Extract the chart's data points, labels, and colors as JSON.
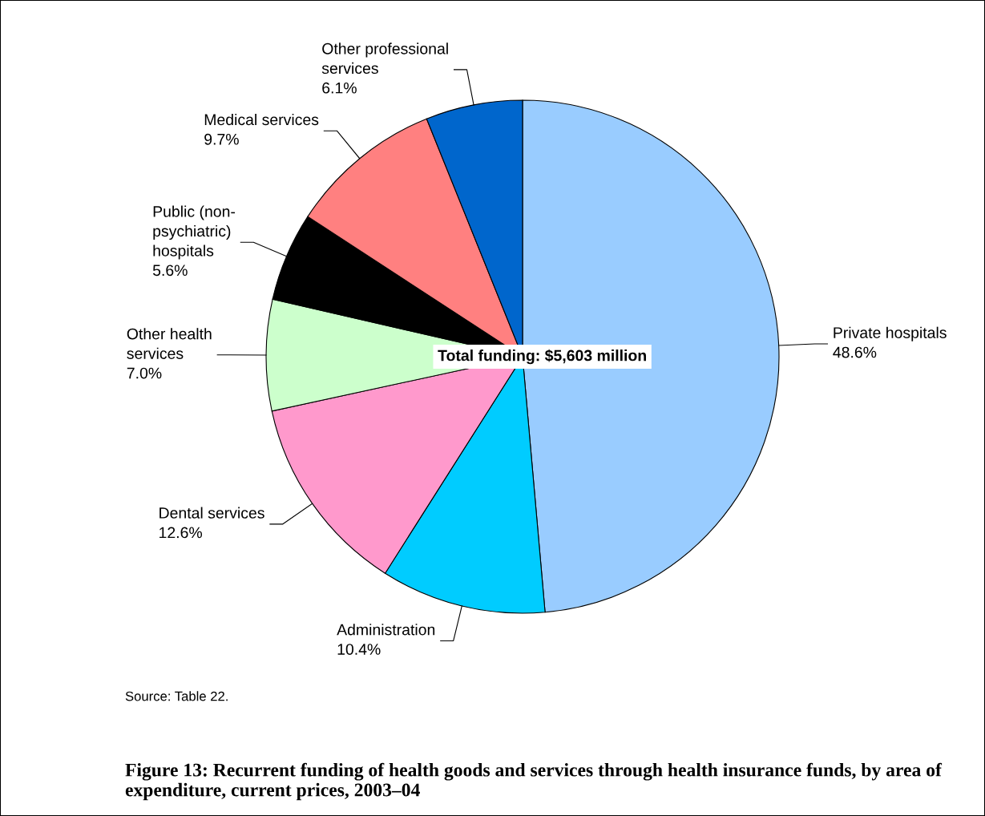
{
  "chart_data": {
    "type": "pie",
    "title": "Figure 13: Recurrent funding of health goods and services through health insurance funds, by area of expenditure, current prices, 2003–04",
    "categories": [
      "Private hospitals",
      "Administration",
      "Dental services",
      "Other health\nservices",
      "Public (non-\npsychiatric)\nhospitals",
      "Medical services",
      "Other professional\nservices"
    ],
    "values": [
      48.6,
      10.4,
      12.6,
      7.0,
      5.6,
      9.7,
      6.1
    ],
    "value_labels": [
      "48.6%",
      "10.4%",
      "12.6%",
      "7.0%",
      "5.6%",
      "9.7%",
      "6.1%"
    ],
    "colors": [
      "#99ccff",
      "#00ccff",
      "#ff99cc",
      "#ccffcc",
      "#000000",
      "#ff8080",
      "#0066cc"
    ],
    "annotations": [
      {
        "text": "Total funding: $5,603 million"
      },
      {
        "text": "Source: Table 22."
      }
    ],
    "legend": false
  }
}
